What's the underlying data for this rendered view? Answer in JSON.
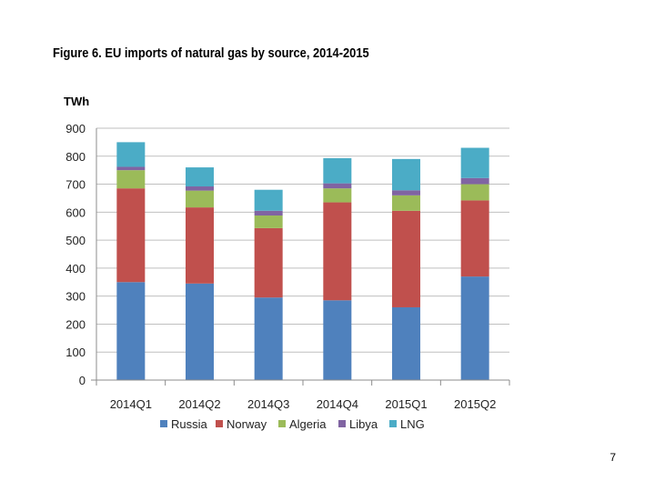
{
  "page": {
    "number": "7"
  },
  "chart_data": {
    "type": "bar",
    "stacked": true,
    "title": "Figure 6. EU imports of natural gas by source, 2014-2015",
    "ylabel": "TWh",
    "xlabel": "",
    "ylim": [
      0,
      900
    ],
    "yticks": [
      0,
      100,
      200,
      300,
      400,
      500,
      600,
      700,
      800,
      900
    ],
    "grid": true,
    "legend_position": "bottom",
    "categories": [
      "2014Q1",
      "2014Q2",
      "2014Q3",
      "2014Q4",
      "2015Q1",
      "2015Q2"
    ],
    "series": [
      {
        "name": "Russia",
        "color": "#4f81bd",
        "values": [
          350,
          345,
          295,
          285,
          260,
          370
        ]
      },
      {
        "name": "Norway",
        "color": "#c0504d",
        "values": [
          335,
          272,
          248,
          350,
          345,
          272
        ]
      },
      {
        "name": "Algeria",
        "color": "#9bbb59",
        "values": [
          65,
          60,
          45,
          50,
          55,
          58
        ]
      },
      {
        "name": "Libya",
        "color": "#8064a2",
        "values": [
          12,
          15,
          17,
          18,
          18,
          22
        ]
      },
      {
        "name": "LNG",
        "color": "#4bacc6",
        "values": [
          88,
          68,
          75,
          90,
          112,
          108
        ]
      }
    ]
  }
}
